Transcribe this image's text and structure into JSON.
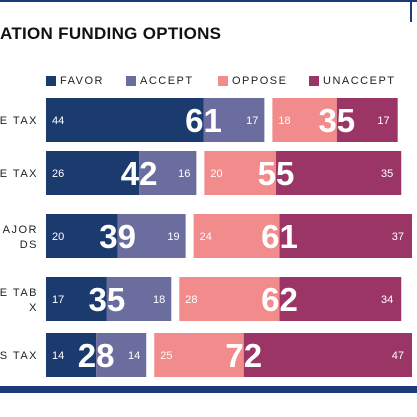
{
  "chart_data": {
    "type": "bar",
    "title": "ATION FUNDING OPTIONS",
    "legend": [
      {
        "key": "favor",
        "label": "FAVOR",
        "color": "#1b3a6e"
      },
      {
        "key": "accept",
        "label": "ACCEPT",
        "color": "#6b6d9e"
      },
      {
        "key": "oppose",
        "label": "OPPOSE",
        "color": "#f28b8b"
      },
      {
        "key": "unaccept",
        "label": "UNACCEPT",
        "color": "#9b3566"
      }
    ],
    "categories": [
      [
        "E TAX"
      ],
      [
        "E TAX"
      ],
      [
        "AJOR",
        "DS"
      ],
      [
        "E TAB",
        "X"
      ],
      [
        "S TAX"
      ]
    ],
    "favor": [
      44,
      26,
      20,
      17,
      14
    ],
    "accept": [
      17,
      16,
      19,
      18,
      14
    ],
    "oppose": [
      18,
      20,
      24,
      28,
      25
    ],
    "unaccept": [
      17,
      35,
      37,
      34,
      47
    ],
    "support_total": [
      61,
      42,
      39,
      35,
      28
    ],
    "oppose_total": [
      35,
      55,
      61,
      62,
      72
    ]
  }
}
